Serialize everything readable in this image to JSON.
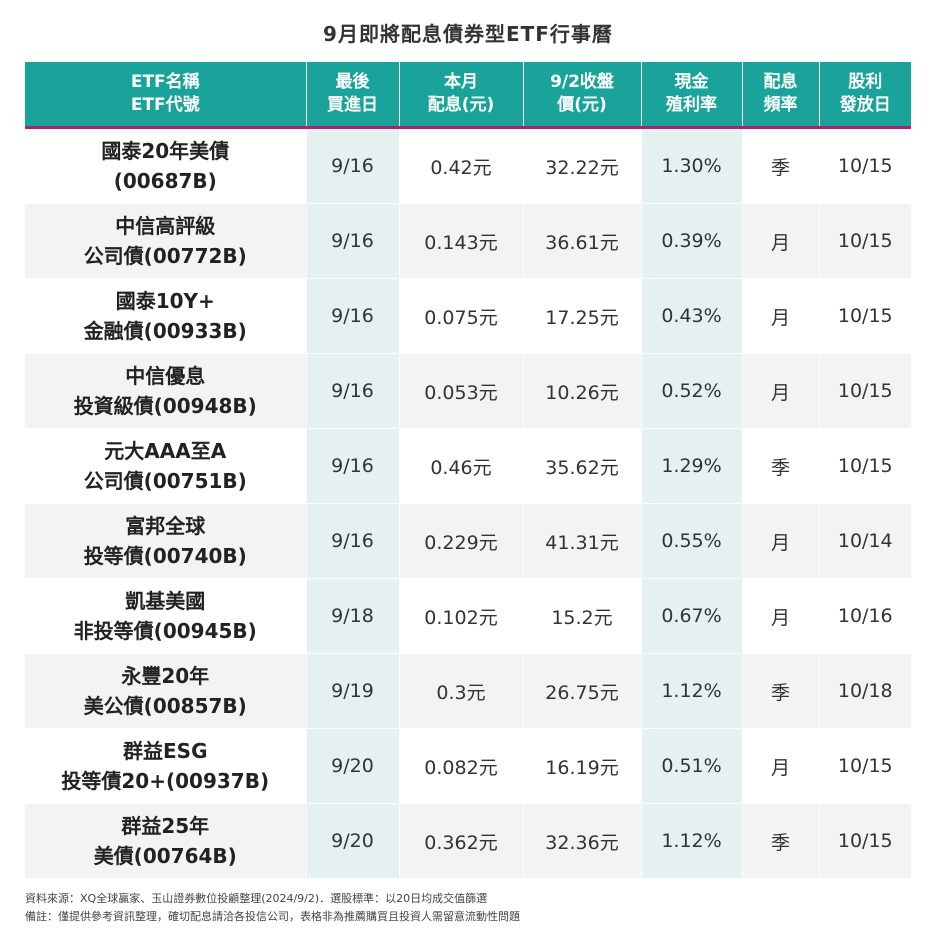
{
  "title": "9月即將配息債券型ETF行事曆",
  "headers": [
    {
      "line1": "ETF名稱",
      "line2": "ETF代號"
    },
    {
      "line1": "最後",
      "line2": "買進日"
    },
    {
      "line1": "本月",
      "line2": "配息(元)"
    },
    {
      "line1": "9/2收盤",
      "line2": "價(元)"
    },
    {
      "line1": "現金",
      "line2": "殖利率"
    },
    {
      "line1": "配息",
      "line2": "頻率"
    },
    {
      "line1": "股利",
      "line2": "發放日"
    }
  ],
  "rows": [
    {
      "name1": "國泰20年美債",
      "name2": "(00687B)",
      "last_buy": "9/16",
      "dividend": "0.42元",
      "price": "32.22元",
      "yield": "1.30%",
      "freq": "季",
      "pay_date": "10/15"
    },
    {
      "name1": "中信高評級",
      "name2": "公司債(00772B)",
      "last_buy": "9/16",
      "dividend": "0.143元",
      "price": "36.61元",
      "yield": "0.39%",
      "freq": "月",
      "pay_date": "10/15"
    },
    {
      "name1": "國泰10Y+",
      "name2": "金融債(00933B)",
      "last_buy": "9/16",
      "dividend": "0.075元",
      "price": "17.25元",
      "yield": "0.43%",
      "freq": "月",
      "pay_date": "10/15"
    },
    {
      "name1": "中信優息",
      "name2": "投資級債(00948B)",
      "last_buy": "9/16",
      "dividend": "0.053元",
      "price": "10.26元",
      "yield": "0.52%",
      "freq": "月",
      "pay_date": "10/15"
    },
    {
      "name1": "元大AAA至A",
      "name2": "公司債(00751B)",
      "last_buy": "9/16",
      "dividend": "0.46元",
      "price": "35.62元",
      "yield": "1.29%",
      "freq": "季",
      "pay_date": "10/15"
    },
    {
      "name1": "富邦全球",
      "name2": "投等債(00740B)",
      "last_buy": "9/16",
      "dividend": "0.229元",
      "price": "41.31元",
      "yield": "0.55%",
      "freq": "月",
      "pay_date": "10/14"
    },
    {
      "name1": "凱基美國",
      "name2": "非投等債(00945B)",
      "last_buy": "9/18",
      "dividend": "0.102元",
      "price": "15.2元",
      "yield": "0.67%",
      "freq": "月",
      "pay_date": "10/16"
    },
    {
      "name1": "永豐20年",
      "name2": "美公債(00857B)",
      "last_buy": "9/19",
      "dividend": "0.3元",
      "price": "26.75元",
      "yield": "1.12%",
      "freq": "季",
      "pay_date": "10/18"
    },
    {
      "name1": "群益ESG",
      "name2": "投等債20+(00937B)",
      "last_buy": "9/20",
      "dividend": "0.082元",
      "price": "16.19元",
      "yield": "0.51%",
      "freq": "月",
      "pay_date": "10/15"
    },
    {
      "name1": "群益25年",
      "name2": "美債(00764B)",
      "last_buy": "9/20",
      "dividend": "0.362元",
      "price": "32.36元",
      "yield": "1.12%",
      "freq": "季",
      "pay_date": "10/15"
    }
  ],
  "footer": {
    "source": "資料來源：XQ全球贏家、玉山證券數位投顧整理(2024/9/2)．選股標準：以20日均成交值篩選",
    "note": "備註：僅提供參考資訊整理，確切配息請洽各投信公司，表格非為推薦購買且投資人需留意流動性問題"
  },
  "colors": {
    "header_bg": "#1aa39a",
    "header_underline": "#a8246a",
    "highlight_col": "#e4f1f0"
  }
}
